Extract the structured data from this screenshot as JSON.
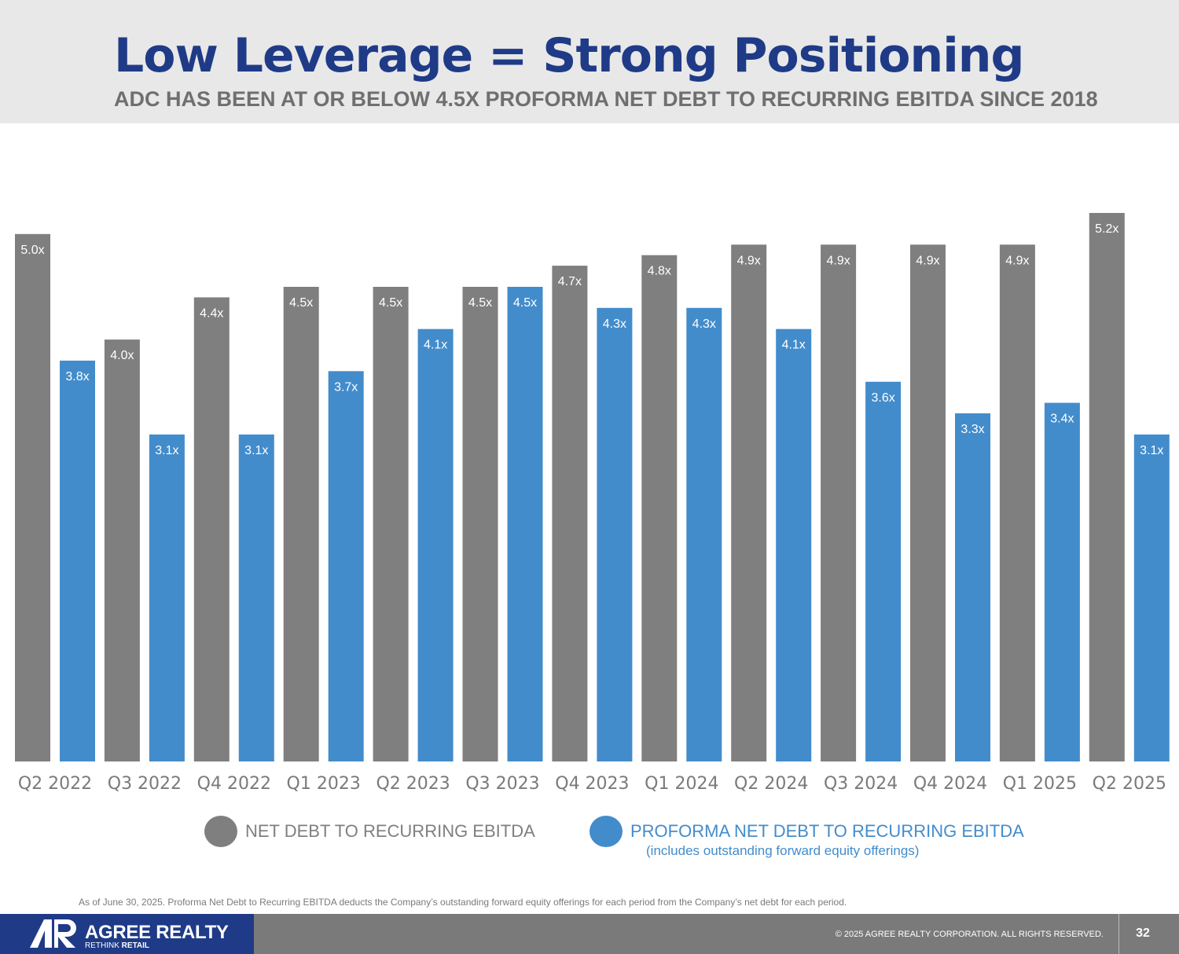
{
  "header": {
    "title": "Low Leverage = Strong Positioning",
    "subtitle": "ADC HAS BEEN AT OR BELOW 4.5X PROFORMA NET DEBT TO RECURRING EBITDA SINCE 2018"
  },
  "chart_data": {
    "type": "bar",
    "title": "Low Leverage = Strong Positioning",
    "xlabel": "",
    "ylabel": "",
    "ylim": [
      0,
      5.2
    ],
    "grid": false,
    "legend_position": "bottom",
    "categories": [
      "Q2 2022",
      "Q3 2022",
      "Q4 2022",
      "Q1 2023",
      "Q2 2023",
      "Q3 2023",
      "Q4 2023",
      "Q1 2024",
      "Q2 2024",
      "Q3 2024",
      "Q4 2024",
      "Q1 2025",
      "Q2 2025"
    ],
    "series": [
      {
        "name": "NET DEBT TO RECURRING EBITDA",
        "color": "#7f7f7f",
        "values": [
          5.0,
          4.0,
          4.4,
          4.5,
          4.5,
          4.5,
          4.7,
          4.8,
          4.9,
          4.9,
          4.9,
          4.9,
          5.2
        ],
        "labels": [
          "5.0x",
          "4.0x",
          "4.4x",
          "4.5x",
          "4.5x",
          "4.5x",
          "4.7x",
          "4.8x",
          "4.9x",
          "4.9x",
          "4.9x",
          "4.9x",
          "5.2x"
        ]
      },
      {
        "name": "PROFORMA NET DEBT TO RECURRING EBITDA",
        "note": "(includes outstanding forward equity offerings)",
        "color": "#438ccb",
        "values": [
          3.8,
          3.1,
          3.1,
          3.7,
          4.1,
          4.5,
          4.3,
          4.3,
          4.1,
          3.6,
          3.3,
          3.4,
          3.1
        ],
        "labels": [
          "3.8x",
          "3.1x",
          "3.1x",
          "3.7x",
          "4.1x",
          "4.5x",
          "4.3x",
          "4.3x",
          "4.1x",
          "3.6x",
          "3.3x",
          "3.4x",
          "3.1x"
        ]
      }
    ]
  },
  "legend": {
    "net_debt_label": "NET DEBT TO RECURRING EBITDA",
    "proforma_label": "PROFORMA NET DEBT TO RECURRING EBITDA",
    "proforma_note": "(includes outstanding forward equity offerings)"
  },
  "footnote": "As of June 30, 2025. Proforma Net Debt to Recurring EBITDA deducts the Company’s outstanding forward equity offerings for each period from the Company’s net debt for each period.",
  "footer": {
    "brand_name": "AGREE REALTY",
    "brand_tag_light": "RETHINK ",
    "brand_tag_bold": "RETAIL",
    "copyright": "© 2025 AGREE REALTY CORPORATION. ALL RIGHTS RESERVED.",
    "page_number": "32"
  },
  "colors": {
    "title": "#1f3b87",
    "subtitle": "#6f6f6f",
    "net_debt": "#7f7f7f",
    "proforma": "#438ccb",
    "brand": "#1f3b87",
    "footer": "#7a7a7a"
  }
}
